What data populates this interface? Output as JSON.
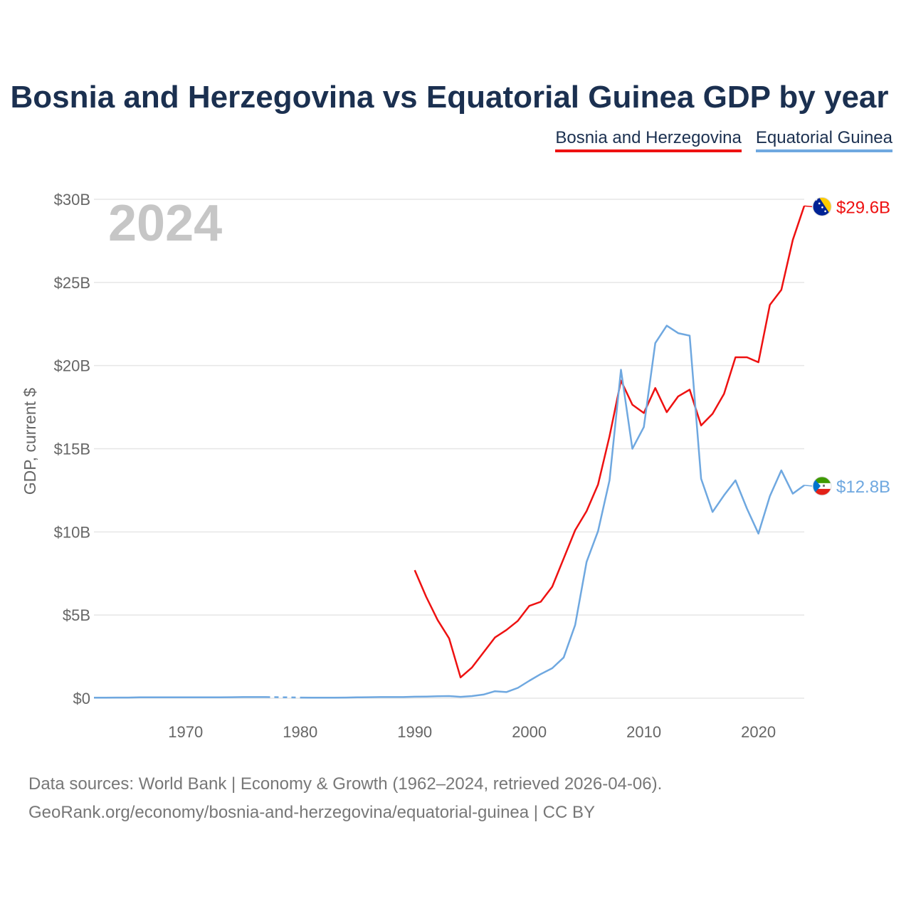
{
  "title": "Bosnia and Herzegovina vs Equatorial Guinea GDP by year",
  "year_watermark": "2024",
  "footer": {
    "line1": "Data sources: World Bank | Economy & Growth (1962–2024, retrieved 2026-04-06).",
    "line2": "GeoRank.org/economy/bosnia-and-herzegovina/equatorial-guinea | CC BY"
  },
  "colors": {
    "bosnia": "#ee1111",
    "guinea": "#6fa8e0",
    "title": "#1b3050",
    "grid": "#e6e6e6"
  },
  "chart_data": {
    "type": "line",
    "title": "Bosnia and Herzegovina vs Equatorial Guinea GDP by year",
    "ylabel": "GDP, current $",
    "xlabel": "",
    "xlim": [
      1962,
      2024
    ],
    "ylim": [
      0,
      30
    ],
    "y_unit": "billion US$",
    "y_ticks": [
      0,
      5,
      10,
      15,
      20,
      25,
      30
    ],
    "y_tick_labels": [
      "$0",
      "$5B",
      "$10B",
      "$15B",
      "$20B",
      "$25B",
      "$30B"
    ],
    "x_ticks": [
      1970,
      1980,
      1990,
      2000,
      2010,
      2020
    ],
    "x_tick_labels": [
      "1970",
      "1980",
      "1990",
      "2000",
      "2010",
      "2020"
    ],
    "legend": "top-right",
    "grid": true,
    "series": [
      {
        "name": "Bosnia and Herzegovina",
        "color": "#ee1111",
        "end_label": "$29.6B",
        "flag": "bosnia-flag",
        "x": [
          1990,
          1991,
          1992,
          1993,
          1994,
          1995,
          1996,
          1997,
          1998,
          1999,
          2000,
          2001,
          2002,
          2003,
          2004,
          2005,
          2006,
          2007,
          2008,
          2009,
          2010,
          2011,
          2012,
          2013,
          2014,
          2015,
          2016,
          2017,
          2018,
          2019,
          2020,
          2021,
          2022,
          2023,
          2024
        ],
        "values": [
          7.7,
          6.1,
          4.7,
          3.6,
          1.25,
          1.85,
          2.75,
          3.65,
          4.1,
          4.65,
          5.55,
          5.8,
          6.7,
          8.4,
          10.1,
          11.25,
          12.85,
          15.75,
          19.1,
          17.65,
          17.15,
          18.65,
          17.2,
          18.15,
          18.55,
          16.4,
          17.1,
          18.3,
          20.5,
          20.5,
          20.2,
          23.65,
          24.55,
          27.55,
          29.6
        ]
      },
      {
        "name": "Equatorial Guinea",
        "color": "#6fa8e0",
        "end_label": "$12.8B",
        "flag": "equatorial-guinea-flag",
        "gap_years": [
          1978,
          1979
        ],
        "x": [
          1962,
          1963,
          1964,
          1965,
          1966,
          1967,
          1968,
          1969,
          1970,
          1971,
          1972,
          1973,
          1974,
          1975,
          1976,
          1977,
          1978,
          1979,
          1980,
          1981,
          1982,
          1983,
          1984,
          1985,
          1986,
          1987,
          1988,
          1989,
          1990,
          1991,
          1992,
          1993,
          1994,
          1995,
          1996,
          1997,
          1998,
          1999,
          2000,
          2001,
          2002,
          2003,
          2004,
          2005,
          2006,
          2007,
          2008,
          2009,
          2010,
          2011,
          2012,
          2013,
          2014,
          2015,
          2016,
          2017,
          2018,
          2019,
          2020,
          2021,
          2022,
          2023,
          2024
        ],
        "values": [
          0.03,
          0.03,
          0.04,
          0.04,
          0.05,
          0.05,
          0.05,
          0.05,
          0.05,
          0.05,
          0.05,
          0.05,
          0.06,
          0.07,
          0.07,
          0.07,
          0.06,
          0.05,
          0.04,
          0.03,
          0.03,
          0.03,
          0.04,
          0.05,
          0.06,
          0.07,
          0.07,
          0.07,
          0.09,
          0.1,
          0.12,
          0.13,
          0.08,
          0.13,
          0.22,
          0.42,
          0.37,
          0.62,
          1.05,
          1.45,
          1.8,
          2.45,
          4.4,
          8.2,
          10.05,
          13.1,
          19.75,
          15.0,
          16.3,
          21.35,
          22.4,
          21.95,
          21.8,
          13.2,
          11.2,
          12.2,
          13.1,
          11.4,
          9.9,
          12.15,
          13.7,
          12.3,
          12.8
        ]
      }
    ]
  }
}
